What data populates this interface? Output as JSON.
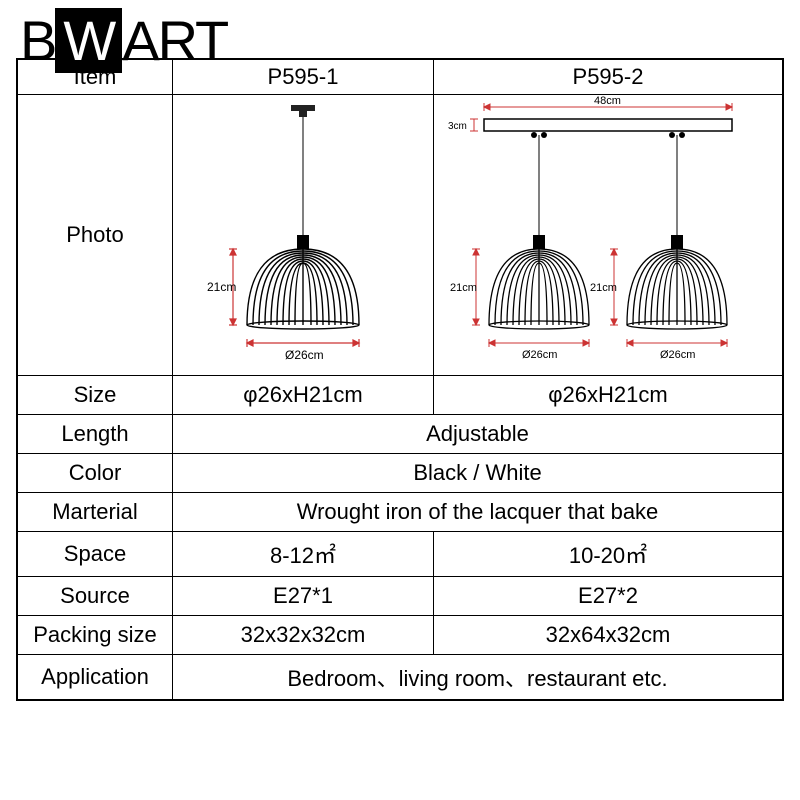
{
  "logo": {
    "b": "B",
    "w": "W",
    "art": "ART"
  },
  "table": {
    "header": {
      "item": "Item",
      "col1": "P595-1",
      "col2": "P595-2"
    },
    "photo": {
      "label": "Photo",
      "lamp1": {
        "height_label": "21cm",
        "diameter_label": "Ø26cm"
      },
      "lamp2": {
        "bar_width": "48cm",
        "bar_height": "3cm",
        "height_label": "21cm",
        "diameter_label": "Ø26cm"
      }
    },
    "rows": [
      {
        "label": "Size",
        "col1": "φ26xH21cm",
        "col2": "φ26xH21cm",
        "merged": false
      },
      {
        "label": "Length",
        "value": "Adjustable",
        "merged": true
      },
      {
        "label": "Color",
        "value": "Black / White",
        "merged": true
      },
      {
        "label": "Marterial",
        "value": "Wrought iron of the lacquer that bake",
        "merged": true
      },
      {
        "label": "Space",
        "col1": "8-12㎡",
        "col2": "10-20㎡",
        "merged": false
      },
      {
        "label": "Source",
        "col1": "E27*1",
        "col2": "E27*2",
        "merged": false
      },
      {
        "label": "Packing size",
        "col1": "32x32x32cm",
        "col2": "32x64x32cm",
        "merged": false
      },
      {
        "label": "Application",
        "value": "Bedroom、living room、restaurant etc.",
        "merged": true
      }
    ]
  },
  "colors": {
    "line": "#000000",
    "dimension": "#cc3333",
    "bg": "#ffffff"
  }
}
